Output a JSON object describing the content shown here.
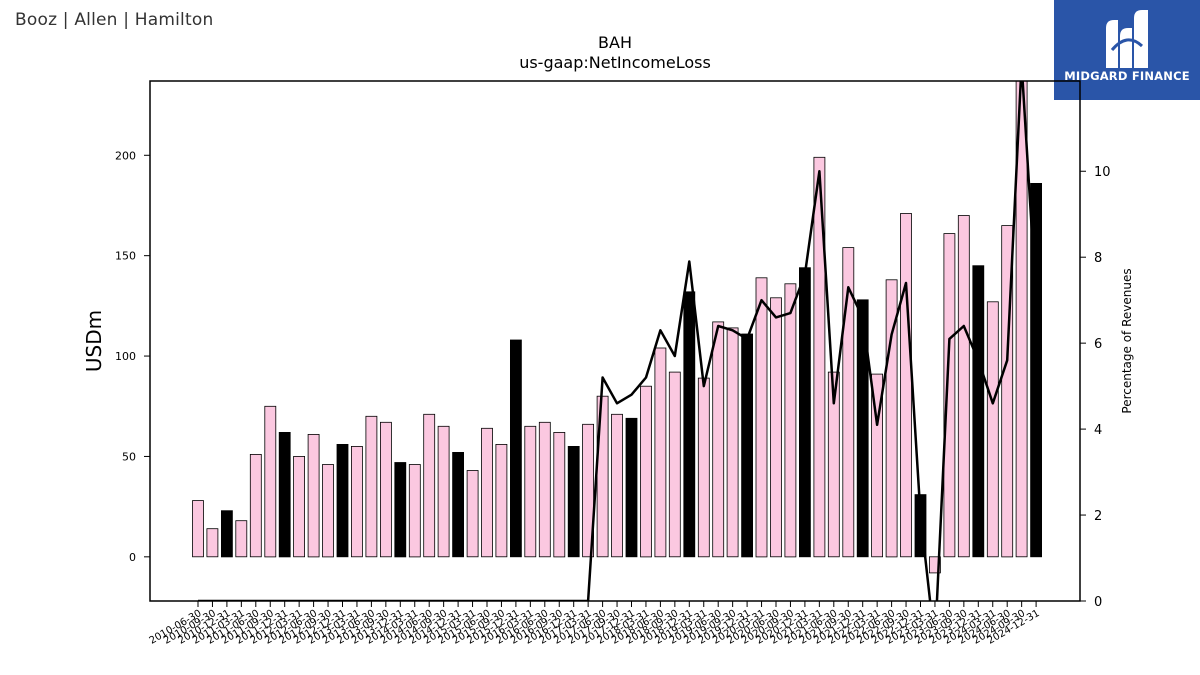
{
  "header": {
    "company": "Booz | Allen | Hamilton"
  },
  "logo": {
    "text": "MIDGARD FINANCE",
    "icon": "midgard-logo-icon"
  },
  "chart_data": {
    "type": "bar",
    "title": "BAH",
    "subtitle": "us-gaap:NetIncomeLoss",
    "ylabel": "USDm",
    "y2label": "Percentage of Revenues",
    "ylim": [
      -22,
      237
    ],
    "y2lim": [
      0,
      12.1
    ],
    "yticks": [
      0,
      50,
      100,
      150,
      200
    ],
    "y2ticks": [
      0,
      2,
      4,
      6,
      8,
      10
    ],
    "colors": {
      "quarter": "#fbc8e0",
      "fiscal_year": "#000000",
      "line": "#000000"
    },
    "categories": [
      "2010-06-30",
      "2010-09-30",
      "2010-12-31",
      "2011-03-31",
      "2011-06-30",
      "2011-09-30",
      "2011-12-31",
      "2012-03-31",
      "2012-06-30",
      "2012-09-30",
      "2012-12-31",
      "2013-03-31",
      "2013-06-30",
      "2013-09-30",
      "2013-12-31",
      "2014-03-31",
      "2014-06-30",
      "2014-09-30",
      "2014-12-31",
      "2015-03-31",
      "2015-06-30",
      "2015-09-30",
      "2015-12-31",
      "2016-03-31",
      "2016-06-30",
      "2016-09-30",
      "2016-12-31",
      "2017-03-31",
      "2017-06-30",
      "2017-09-30",
      "2017-12-31",
      "2018-03-31",
      "2018-06-30",
      "2018-09-30",
      "2018-12-31",
      "2019-03-31",
      "2019-06-30",
      "2019-09-30",
      "2019-12-31",
      "2020-03-31",
      "2020-06-30",
      "2020-09-30",
      "2020-12-31",
      "2021-03-31",
      "2021-06-30",
      "2021-09-30",
      "2021-12-31",
      "2022-03-31",
      "2022-06-30",
      "2022-09-30",
      "2022-12-31",
      "2023-03-31",
      "2023-06-30",
      "2023-09-30",
      "2023-12-31",
      "2024-03-31",
      "2024-06-30",
      "2024-09-30",
      "2024-12-31"
    ],
    "values": [
      28,
      14,
      23,
      18,
      51,
      75,
      62,
      50,
      61,
      46,
      56,
      55,
      70,
      67,
      47,
      46,
      71,
      65,
      52,
      43,
      64,
      56,
      108,
      65,
      67,
      62,
      55,
      66,
      80,
      71,
      69,
      85,
      104,
      92,
      132,
      89,
      117,
      114,
      111,
      139,
      129,
      136,
      144,
      199,
      92,
      154,
      128,
      91,
      138,
      171,
      31,
      -8,
      161,
      170,
      145,
      127,
      165,
      239,
      186
    ],
    "fiscal_year_flags": [
      0,
      0,
      1,
      0,
      0,
      0,
      1,
      0,
      0,
      0,
      1,
      0,
      0,
      0,
      1,
      0,
      0,
      0,
      1,
      0,
      0,
      0,
      1,
      0,
      0,
      0,
      1,
      0,
      0,
      0,
      1,
      0,
      0,
      0,
      1,
      0,
      0,
      0,
      1,
      0,
      0,
      0,
      1,
      0,
      0,
      0,
      1,
      0,
      0,
      0,
      1,
      0,
      0,
      0,
      1,
      0,
      0,
      0,
      1
    ],
    "pct_of_revenues": [
      0,
      0,
      0,
      0,
      0,
      0,
      0,
      0,
      0,
      0,
      0,
      0,
      0,
      0,
      0,
      0,
      0,
      0,
      0,
      0,
      0,
      0,
      0,
      0,
      0,
      0,
      0,
      0,
      5.2,
      4.6,
      4.8,
      5.2,
      6.3,
      5.7,
      7.9,
      5.0,
      6.4,
      6.3,
      6.1,
      7.0,
      6.6,
      6.7,
      7.6,
      10.0,
      4.6,
      7.3,
      6.6,
      4.1,
      6.2,
      7.4,
      2.0,
      -1.0,
      6.1,
      6.4,
      5.6,
      4.6,
      5.6,
      12.5,
      7.0
    ]
  }
}
